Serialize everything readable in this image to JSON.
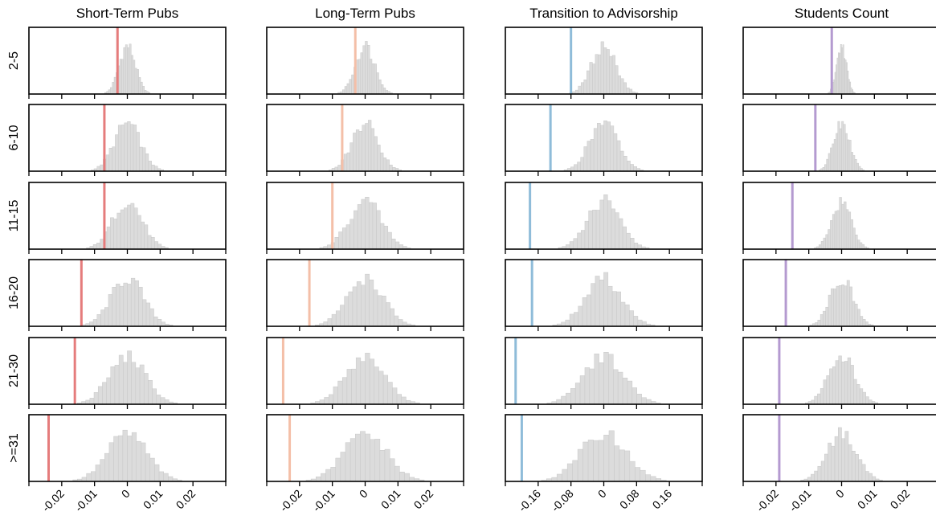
{
  "chart_data": {
    "type": "histogram-grid",
    "columns": [
      {
        "title": "Short-Term Pubs",
        "xlim": [
          -0.03,
          0.03
        ],
        "tick_values": [
          -0.02,
          -0.01,
          0,
          0.01,
          0.02
        ],
        "tick_labels": [
          "-0.02",
          "-0.01",
          "0",
          "0.01",
          "0.02"
        ],
        "line_color": "#e57c7c",
        "observed": [
          -0.003,
          -0.007,
          -0.007,
          -0.014,
          -0.016,
          -0.024
        ],
        "null_sd": [
          0.0025,
          0.004,
          0.0045,
          0.005,
          0.0055,
          0.006
        ]
      },
      {
        "title": "Long-Term Pubs",
        "xlim": [
          -0.03,
          0.03
        ],
        "tick_values": [
          -0.02,
          -0.01,
          0,
          0.01,
          0.02
        ],
        "tick_labels": [
          "-0.02",
          "-0.01",
          "0",
          "0.01",
          "0.02"
        ],
        "line_color": "#f4bfa8",
        "observed": [
          -0.003,
          -0.007,
          -0.01,
          -0.017,
          -0.025,
          -0.023
        ],
        "null_sd": [
          0.003,
          0.004,
          0.005,
          0.0055,
          0.006,
          0.0065
        ]
      },
      {
        "title": "Transition to Advisorship",
        "xlim": [
          -0.24,
          0.24
        ],
        "tick_values": [
          -0.16,
          -0.08,
          0,
          0.08,
          0.16
        ],
        "tick_labels": [
          "-0.16",
          "-0.08",
          "0",
          "0.08",
          "0.16"
        ],
        "line_color": "#8fbcd9",
        "observed": [
          -0.08,
          -0.13,
          -0.18,
          -0.175,
          -0.215,
          -0.2
        ],
        "null_sd": [
          0.03,
          0.035,
          0.04,
          0.045,
          0.05,
          0.055
        ]
      },
      {
        "title": "Students Count",
        "xlim": [
          -0.03,
          0.03
        ],
        "tick_values": [
          -0.02,
          -0.01,
          0,
          0.01,
          0.02
        ],
        "tick_labels": [
          "-0.02",
          "-0.01",
          "0",
          "0.01",
          "0.02"
        ],
        "line_color": "#b49ad0",
        "observed": [
          -0.003,
          -0.008,
          -0.015,
          -0.017,
          -0.019,
          -0.019
        ],
        "null_sd": [
          0.0015,
          0.0025,
          0.003,
          0.0035,
          0.004,
          0.0045
        ]
      }
    ],
    "rows": [
      "2-5",
      "6-10",
      "11-15",
      "16-20",
      "21-30",
      ">=31"
    ],
    "histogram_color": "#dcdcdc",
    "grid": false
  }
}
